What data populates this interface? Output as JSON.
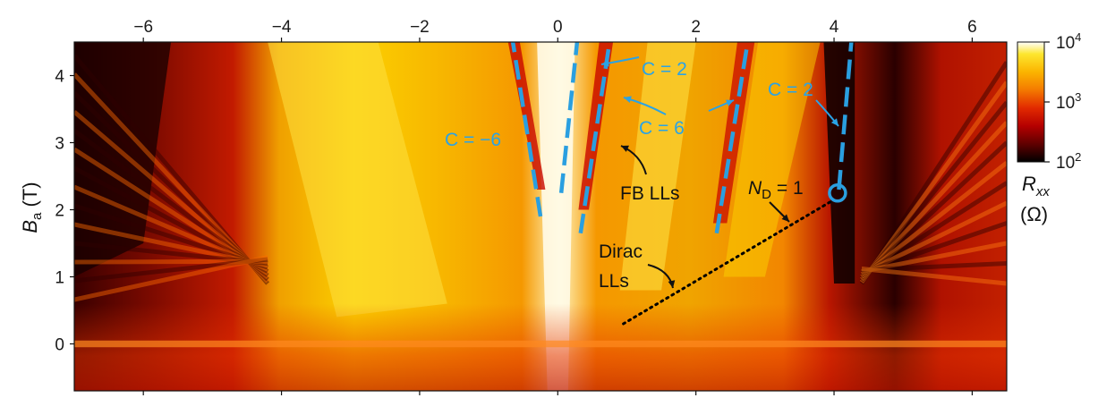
{
  "chart_data": {
    "type": "heatmap",
    "title": "",
    "xlabel": "",
    "ylabel": "B",
    "ylabel_sub": "a",
    "ylabel_unit": "(T)",
    "xlim": [
      -7.0,
      6.5
    ],
    "ylim": [
      -0.7,
      4.5
    ],
    "xticks": [
      -6,
      -4,
      -2,
      0,
      2,
      4,
      6
    ],
    "xtick_labels": [
      "−6",
      "−4",
      "−2",
      "0",
      "2",
      "4",
      "6"
    ],
    "yticks": [
      0,
      1,
      2,
      3,
      4
    ],
    "ytick_labels": [
      "0",
      "1",
      "2",
      "3",
      "4"
    ],
    "colorscale": {
      "type": "log",
      "label": "R",
      "label_sub": "xx",
      "unit": "(Ω)",
      "min": 100,
      "max": 10000,
      "ticks": [
        {
          "value": 10000,
          "base": "10",
          "exp": "4"
        },
        {
          "value": 1000,
          "base": "10",
          "exp": "3"
        },
        {
          "value": 100,
          "base": "10",
          "exp": "2"
        }
      ],
      "colors": [
        "#000000",
        "#5a0000",
        "#b50000",
        "#e22a00",
        "#f47a00",
        "#fbb400",
        "#fde62e",
        "#ffffff"
      ]
    },
    "lines": [
      {
        "name": "C = −6",
        "color": "#2a9fe0",
        "style": "dashed",
        "points": [
          [
            -0.25,
            1.9
          ],
          [
            -0.65,
            4.5
          ]
        ]
      },
      {
        "name": "C = 2",
        "color": "#2a9fe0",
        "style": "dashed",
        "points": [
          [
            0.05,
            2.25
          ],
          [
            0.28,
            4.5
          ]
        ]
      },
      {
        "name": "C = 6",
        "color": "#2a9fe0",
        "style": "dashed",
        "points": [
          [
            0.33,
            1.65
          ],
          [
            0.75,
            4.5
          ]
        ]
      },
      {
        "name": "C = 6",
        "color": "#2a9fe0",
        "style": "dashed",
        "points": [
          [
            2.3,
            1.65
          ],
          [
            2.75,
            4.5
          ]
        ]
      },
      {
        "name": "C = 2",
        "color": "#2a9fe0",
        "style": "dashed",
        "points": [
          [
            4.07,
            2.3
          ],
          [
            4.25,
            4.5
          ]
        ]
      },
      {
        "name": "N_D = 1",
        "color": "#000000",
        "style": "dotted",
        "points": [
          [
            0.95,
            0.3
          ],
          [
            4.0,
            2.15
          ]
        ]
      }
    ],
    "markers": [
      {
        "shape": "open-circle",
        "color": "#2a9fe0",
        "x": 4.05,
        "y": 2.25
      }
    ],
    "annotations": [
      {
        "text": "C = −6",
        "color": "blue"
      },
      {
        "text": "C = 2",
        "color": "blue"
      },
      {
        "text": "C = 6",
        "color": "blue"
      },
      {
        "text": "C = 2",
        "color": "blue"
      },
      {
        "text": "FB LLs",
        "color": "black"
      },
      {
        "text": "N",
        "sub": "D",
        "suffix": " = 1",
        "color": "black"
      },
      {
        "text": "Dirac",
        "color": "black"
      },
      {
        "text": "LLs",
        "color": "black"
      }
    ]
  }
}
